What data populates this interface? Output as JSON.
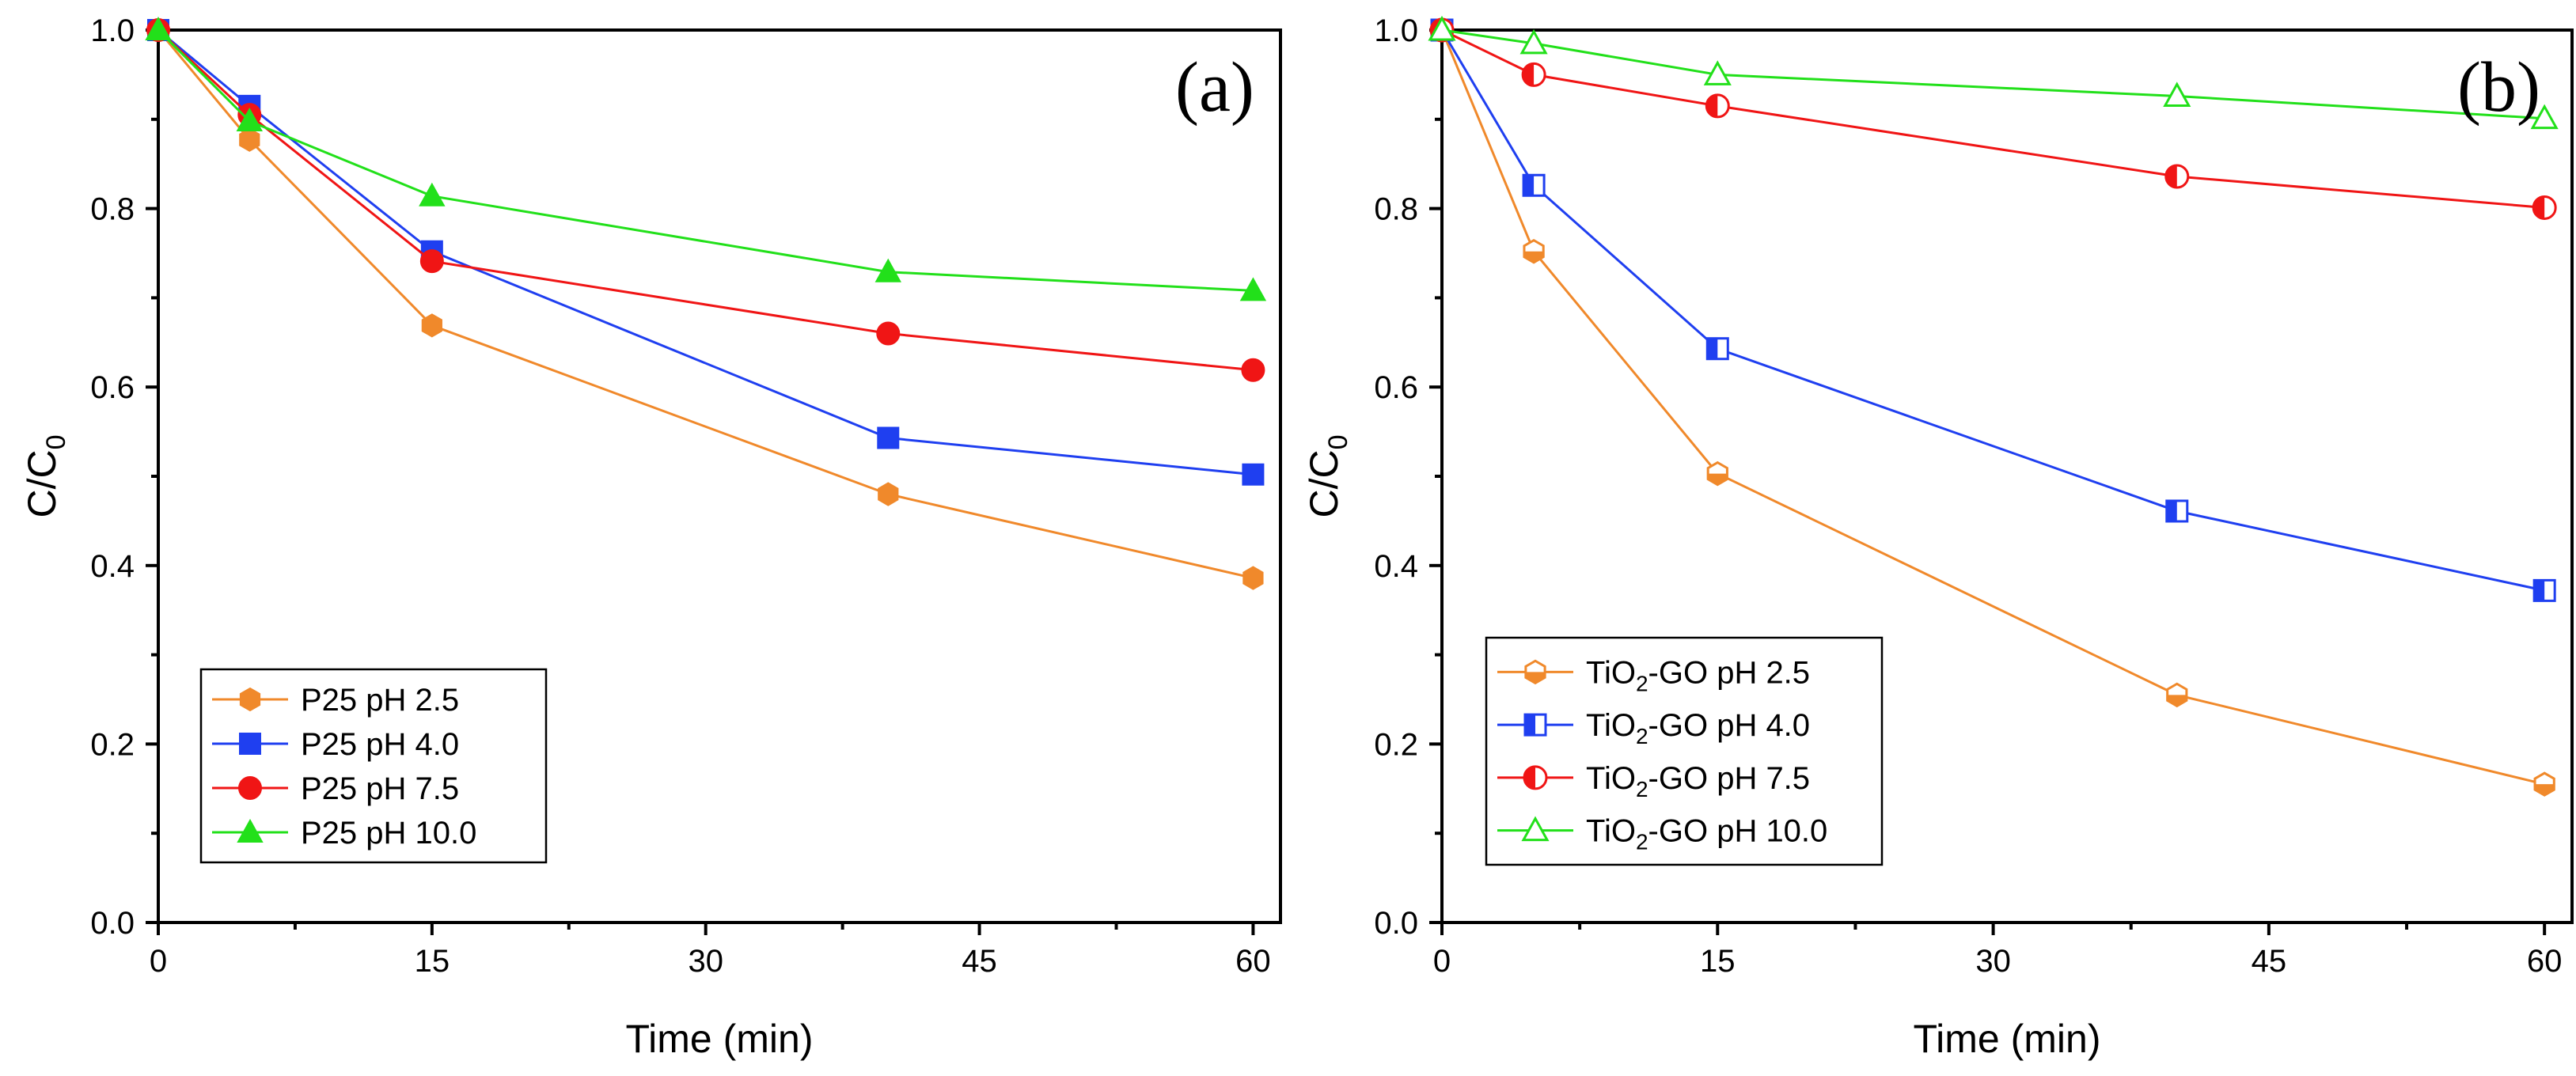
{
  "chart_data": [
    {
      "type": "line",
      "panel_label": "(a)",
      "xlabel": "Time (min)",
      "ylabel_main": "C/C",
      "ylabel_sub": "0",
      "xlim": [
        0,
        61.5
      ],
      "ylim": [
        0,
        1.0
      ],
      "xticks": [
        0,
        15,
        30,
        45,
        60
      ],
      "xtick_labels": [
        "0",
        "15",
        "30",
        "45",
        "60"
      ],
      "yticks": [
        0,
        0.2,
        0.4,
        0.6,
        0.8,
        1.0
      ],
      "ytick_labels": [
        "0.0",
        "0.2",
        "0.4",
        "0.6",
        "0.8",
        "1.0"
      ],
      "legend_position": "bottom-left",
      "x": [
        0,
        5,
        15,
        40,
        60
      ],
      "series": [
        {
          "name": "P25 pH 2.5",
          "values": [
            1.0,
            0.877,
            0.669,
            0.48,
            0.386
          ],
          "color": "#f0892b",
          "marker": "hexagon",
          "fill": "full"
        },
        {
          "name": "P25 pH 4.0",
          "values": [
            1.0,
            0.915,
            0.752,
            0.543,
            0.502
          ],
          "color": "#1f3ff0",
          "marker": "square",
          "fill": "full"
        },
        {
          "name": "P25 pH 7.5",
          "values": [
            1.0,
            0.905,
            0.741,
            0.66,
            0.619
          ],
          "color": "#f01515",
          "marker": "circle",
          "fill": "full"
        },
        {
          "name": "P25 pH 10.0",
          "values": [
            1.0,
            0.898,
            0.814,
            0.729,
            0.708
          ],
          "color": "#22e01a",
          "marker": "triangle",
          "fill": "full"
        }
      ]
    },
    {
      "type": "line",
      "panel_label": "(b)",
      "xlabel": "Time (min)",
      "ylabel_main": "C/C",
      "ylabel_sub": "0",
      "xlim": [
        0,
        61.5
      ],
      "ylim": [
        0,
        1.0
      ],
      "xticks": [
        0,
        15,
        30,
        45,
        60
      ],
      "xtick_labels": [
        "0",
        "15",
        "30",
        "45",
        "60"
      ],
      "yticks": [
        0,
        0.2,
        0.4,
        0.6,
        0.8,
        1.0
      ],
      "ytick_labels": [
        "0.0",
        "0.2",
        "0.4",
        "0.6",
        "0.8",
        "1.0"
      ],
      "legend_position": "bottom-left",
      "x": [
        0,
        5,
        15,
        40,
        60
      ],
      "series": [
        {
          "name": "TiO2-GO pH 2.5",
          "name_parts": [
            "TiO",
            "2",
            "-GO pH 2.5"
          ],
          "values": [
            1.0,
            0.752,
            0.503,
            0.255,
            0.155
          ],
          "color": "#f0892b",
          "marker": "hexagon",
          "fill": "bottom"
        },
        {
          "name": "TiO2-GO pH 4.0",
          "name_parts": [
            "TiO",
            "2",
            "-GO pH 4.0"
          ],
          "values": [
            1.0,
            0.826,
            0.643,
            0.461,
            0.372
          ],
          "color": "#1f3ff0",
          "marker": "square",
          "fill": "left"
        },
        {
          "name": "TiO2-GO pH 7.5",
          "name_parts": [
            "TiO",
            "2",
            "-GO pH 7.5"
          ],
          "values": [
            1.0,
            0.95,
            0.915,
            0.836,
            0.801
          ],
          "color": "#f01515",
          "marker": "circle",
          "fill": "left"
        },
        {
          "name": "TiO2-GO pH 10.0",
          "name_parts": [
            "TiO",
            "2",
            "-GO pH 10.0"
          ],
          "values": [
            1.0,
            0.985,
            0.95,
            0.926,
            0.901
          ],
          "color": "#22e01a",
          "marker": "triangle",
          "fill": "none"
        }
      ]
    }
  ]
}
